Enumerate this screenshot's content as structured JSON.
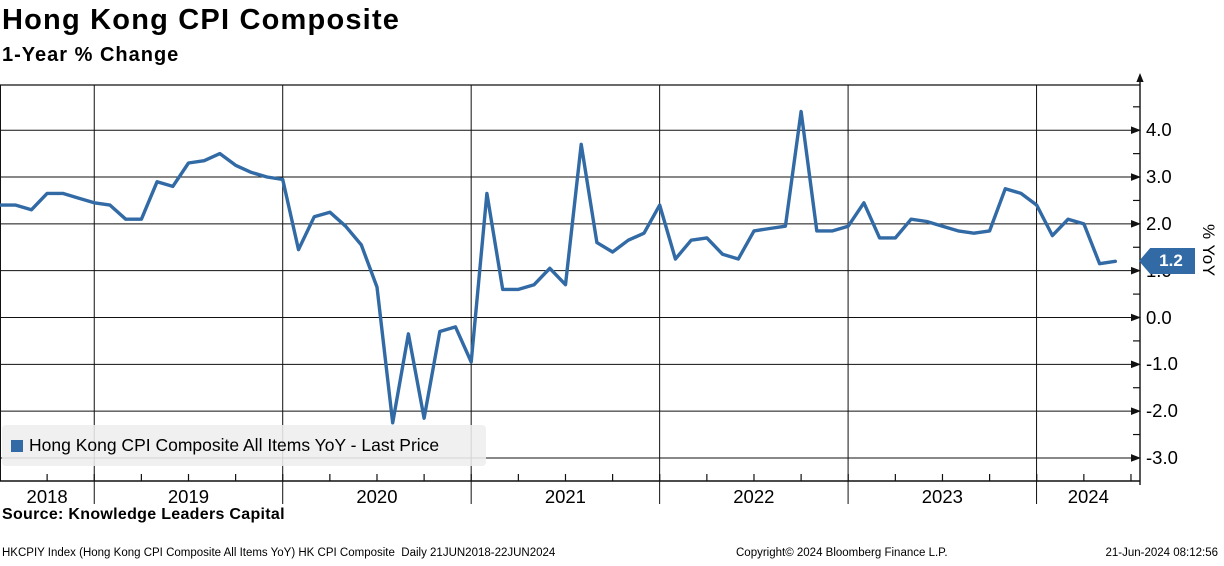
{
  "header": {
    "title": "Hong Kong CPI Composite",
    "subtitle": "1-Year % Change"
  },
  "chart_data": {
    "type": "line",
    "title": "Hong Kong CPI Composite",
    "subtitle": "1-Year % Change",
    "series_name": "Hong Kong CPI Composite All Items YoY",
    "legend_label": "Hong Kong CPI Composite All Items YoY - Last Price",
    "line_color": "#316AA5",
    "frequency": "monthly",
    "date_range": "21JUN2018-22JUN2024",
    "months": [
      "2018-06",
      "2018-07",
      "2018-08",
      "2018-09",
      "2018-10",
      "2018-11",
      "2018-12",
      "2019-01",
      "2019-02",
      "2019-03",
      "2019-04",
      "2019-05",
      "2019-06",
      "2019-07",
      "2019-08",
      "2019-09",
      "2019-10",
      "2019-11",
      "2019-12",
      "2020-01",
      "2020-02",
      "2020-03",
      "2020-04",
      "2020-05",
      "2020-06",
      "2020-07",
      "2020-08",
      "2020-09",
      "2020-10",
      "2020-11",
      "2020-12",
      "2021-01",
      "2021-02",
      "2021-03",
      "2021-04",
      "2021-05",
      "2021-06",
      "2021-07",
      "2021-08",
      "2021-09",
      "2021-10",
      "2021-11",
      "2021-12",
      "2022-01",
      "2022-02",
      "2022-03",
      "2022-04",
      "2022-05",
      "2022-06",
      "2022-07",
      "2022-08",
      "2022-09",
      "2022-10",
      "2022-11",
      "2022-12",
      "2023-01",
      "2023-02",
      "2023-03",
      "2023-04",
      "2023-05",
      "2023-06",
      "2023-07",
      "2023-08",
      "2023-09",
      "2023-10",
      "2023-11",
      "2023-12",
      "2024-01",
      "2024-02",
      "2024-03",
      "2024-04",
      "2024-05"
    ],
    "values": [
      2.4,
      2.4,
      2.3,
      2.65,
      2.65,
      2.55,
      2.45,
      2.4,
      2.1,
      2.1,
      2.9,
      2.8,
      3.3,
      3.35,
      3.5,
      3.25,
      3.1,
      3.0,
      2.95,
      1.45,
      2.15,
      2.25,
      1.95,
      1.55,
      0.65,
      -2.25,
      -0.35,
      -2.15,
      -0.3,
      -0.2,
      -0.95,
      2.65,
      0.6,
      0.6,
      0.7,
      1.05,
      0.7,
      3.7,
      1.6,
      1.4,
      1.65,
      1.8,
      2.4,
      1.25,
      1.65,
      1.7,
      1.35,
      1.25,
      1.85,
      1.9,
      1.95,
      4.4,
      1.85,
      1.85,
      1.95,
      2.45,
      1.7,
      1.7,
      2.1,
      2.05,
      1.95,
      1.85,
      1.8,
      1.85,
      2.75,
      2.65,
      2.4,
      1.75,
      2.1,
      2.0,
      1.15,
      1.2
    ],
    "last_price": "1.2",
    "ylabel": "% YoY",
    "ylim": [
      -3.5,
      5.0
    ],
    "y_ticks": {
      "labels": [
        "4.0",
        "3.0",
        "2.0",
        "1.0",
        "0.0",
        "-1.0",
        "-2.0",
        "-3.0"
      ],
      "values": [
        4.0,
        3.0,
        2.0,
        1.0,
        0.0,
        -1.0,
        -2.0,
        -3.0
      ]
    },
    "x_ticks": {
      "labels": [
        "2018",
        "2019",
        "2020",
        "2021",
        "2022",
        "2023",
        "2024"
      ]
    },
    "grid": "on",
    "legend_position": "bottom-left"
  },
  "footer": {
    "source": "Source: Knowledge Leaders Capital",
    "meta_left": "HKCPIY Index (Hong Kong CPI Composite All Items YoY) HK CPI Composite  Daily 21JUN2018-22JUN2024",
    "copyright": "Copyright© 2024 Bloomberg Finance L.P.",
    "timestamp": "21-Jun-2024 08:12:56"
  }
}
